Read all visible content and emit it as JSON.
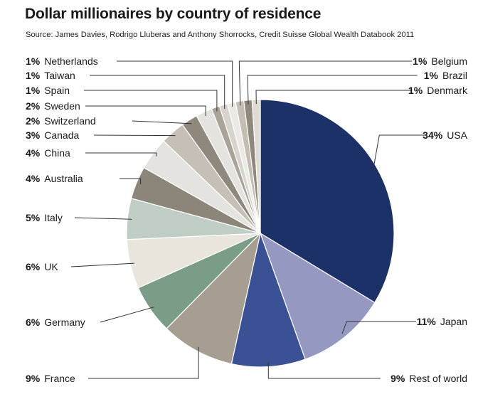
{
  "title": "Dollar millionaires by country of residence",
  "source": "Source: James Davies, Rodrigo Lluberas and Anthony Shorrocks, Credit Suisse Global Wealth Databook 2011",
  "chart_data": {
    "type": "pie",
    "start": "12 o'clock",
    "direction": "clockwise",
    "slices": [
      {
        "label": "USA",
        "pct_label": "34%",
        "value": 34,
        "color": "#1b3168"
      },
      {
        "label": "Japan",
        "pct_label": "11%",
        "value": 11,
        "color": "#9599c1"
      },
      {
        "label": "Rest of world",
        "pct_label": "9%",
        "value": 9,
        "color": "#3a5294"
      },
      {
        "label": "France",
        "pct_label": "9%",
        "value": 9,
        "color": "#a79e92"
      },
      {
        "label": "Germany",
        "pct_label": "6%",
        "value": 6,
        "color": "#7b9d88"
      },
      {
        "label": "UK",
        "pct_label": "6%",
        "value": 6,
        "color": "#e8e5dd"
      },
      {
        "label": "Italy",
        "pct_label": "5%",
        "value": 5,
        "color": "#bfcdc5"
      },
      {
        "label": "Australia",
        "pct_label": "4%",
        "value": 4,
        "color": "#8c8579"
      },
      {
        "label": "China",
        "pct_label": "4%",
        "value": 4,
        "color": "#e5e3df"
      },
      {
        "label": "Canada",
        "pct_label": "3%",
        "value": 3,
        "color": "#c5bfb5"
      },
      {
        "label": "Switzerland",
        "pct_label": "2%",
        "value": 2,
        "color": "#8f887d"
      },
      {
        "label": "Sweden",
        "pct_label": "2%",
        "value": 2,
        "color": "#e5e3df"
      },
      {
        "label": "Spain",
        "pct_label": "1%",
        "value": 1,
        "color": "#a9a398"
      },
      {
        "label": "Taiwan",
        "pct_label": "1%",
        "value": 1,
        "color": "#d8d4cd"
      },
      {
        "label": "Netherlands",
        "pct_label": "1%",
        "value": 1,
        "color": "#ebe9e5"
      },
      {
        "label": "Belgium",
        "pct_label": "1%",
        "value": 1,
        "color": "#c3bdb3"
      },
      {
        "label": "Brazil",
        "pct_label": "1%",
        "value": 1,
        "color": "#8f887d"
      },
      {
        "label": "Denmark",
        "pct_label": "1%",
        "value": 1,
        "color": "#dedad4"
      }
    ]
  }
}
